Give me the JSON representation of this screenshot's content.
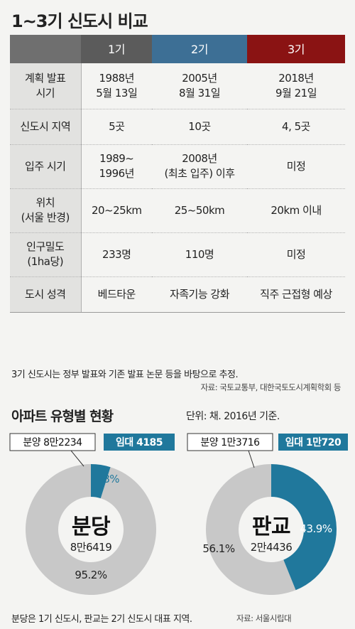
{
  "title": "1~3기 신도시 비교",
  "table": {
    "headers": [
      "",
      "1기",
      "2기",
      "3기"
    ],
    "header_colors": [
      "#6f6f6f",
      "#5b5b5b",
      "#3d6f95",
      "#8a1313"
    ],
    "rows": [
      [
        "계획 발표\n시기",
        "1988년\n5월 13일",
        "2005년\n8월 31일",
        "2018년\n9월 21일"
      ],
      [
        "신도시 지역",
        "5곳",
        "10곳",
        "4, 5곳"
      ],
      [
        "입주 시기",
        "1989~\n1996년",
        "2008년\n(최초 입주) 이후",
        "미정"
      ],
      [
        "위치\n(서울 반경)",
        "20~25km",
        "25~50km",
        "20km 이내"
      ],
      [
        "인구밀도\n(1ha당)",
        "233명",
        "110명",
        "미정"
      ],
      [
        "도시 성격",
        "베드타운",
        "자족기능 강화",
        "직주 근접형 예상"
      ]
    ]
  },
  "note": "3기 신도시는 정부 발표와 기존 발표 논문 등을 바탕으로 추정.",
  "source_top": "자료: 국토교통부, 대한국토도시계획학회 등",
  "section_title": "아파트 유형별 현황",
  "section_unit": "단위: 채. 2016년 기준.",
  "chart_data": [
    {
      "type": "pie",
      "center_label": "분당",
      "center_value": "8만6419",
      "categories": [
        "분양",
        "임대"
      ],
      "values": [
        82234,
        4185
      ],
      "value_labels": [
        "분양 8만2234",
        "임대 4185"
      ],
      "percent_labels": [
        "95.2%",
        "4.8%"
      ],
      "percents": [
        95.2,
        4.8
      ],
      "colors": [
        "#c8c8c8",
        "#20789c"
      ]
    },
    {
      "type": "pie",
      "center_label": "판교",
      "center_value": "2만4436",
      "categories": [
        "분양",
        "임대"
      ],
      "values": [
        13716,
        10720
      ],
      "value_labels": [
        "분양 1만3716",
        "임대 1만720"
      ],
      "percent_labels": [
        "56.1%",
        "43.9%"
      ],
      "percents": [
        56.1,
        43.9
      ],
      "colors": [
        "#c8c8c8",
        "#20789c"
      ]
    }
  ],
  "note_bottom": "분당은 1기 신도시, 판교는 2기 신도시 대표 지역.",
  "source_bottom": "자료: 서울시립대"
}
